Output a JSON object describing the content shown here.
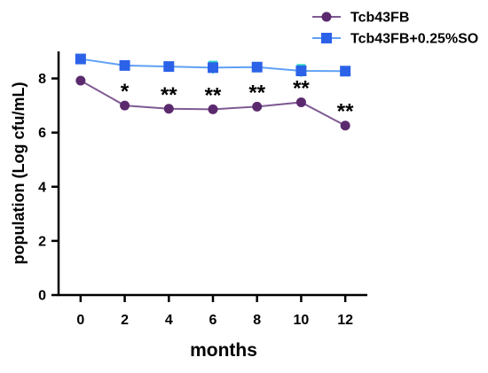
{
  "chart_data": {
    "type": "line",
    "xlabel": "months",
    "ylabel": "population (Log cfu/mL)",
    "x": [
      0,
      2,
      4,
      6,
      8,
      10,
      12
    ],
    "xlim": [
      -1,
      13
    ],
    "ylim": [
      0,
      9
    ],
    "xticks": [
      "0",
      "2",
      "4",
      "6",
      "8",
      "10",
      "12"
    ],
    "yticks": [
      "0",
      "2",
      "4",
      "6",
      "8"
    ],
    "legend_position": "top-right",
    "series": [
      {
        "name": "Tcb43FB",
        "color": "#5b2a6e",
        "line_color": "#7f5a92",
        "marker": "circle",
        "values": [
          7.92,
          7.0,
          6.88,
          6.86,
          6.96,
          7.12,
          6.26
        ]
      },
      {
        "name": "Tcb43FB+0.25%SO",
        "color": "#2b62e8",
        "line_color": "#5fa0f5",
        "marker": "square",
        "error_color": "#2fd1c8",
        "values": [
          8.72,
          8.48,
          8.44,
          8.4,
          8.42,
          8.28,
          8.27
        ],
        "errors": [
          0.08,
          0.08,
          0.08,
          0.22,
          0.08,
          0.22,
          0.16
        ]
      }
    ],
    "annotations": [
      {
        "x": 2,
        "text": "*",
        "y": 7.0
      },
      {
        "x": 4,
        "text": "**",
        "y": 6.88
      },
      {
        "x": 6,
        "text": "**",
        "y": 6.86
      },
      {
        "x": 8,
        "text": "**",
        "y": 6.96
      },
      {
        "x": 10,
        "text": "**",
        "y": 7.12
      },
      {
        "x": 12,
        "text": "**",
        "y": 6.26
      }
    ]
  }
}
